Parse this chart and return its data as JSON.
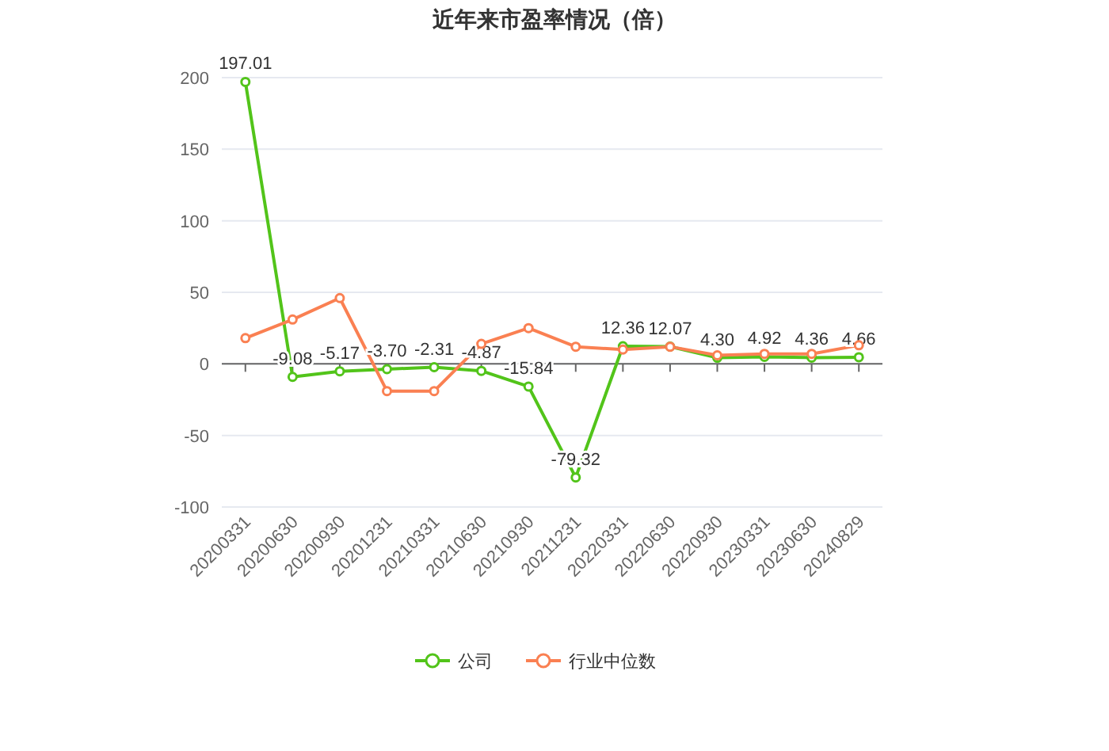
{
  "chart_data": {
    "type": "line",
    "title": "近年来市盈率情况（倍）",
    "categories": [
      "20200331",
      "20200630",
      "20200930",
      "20201231",
      "20210331",
      "20210630",
      "20210930",
      "20211231",
      "20220331",
      "20220630",
      "20220930",
      "20230331",
      "20230630",
      "20240829"
    ],
    "series": [
      {
        "name": "公司",
        "color": "#52c41a",
        "values": [
          197.01,
          -9.08,
          -5.17,
          -3.7,
          -2.31,
          -4.87,
          -15.84,
          -79.32,
          12.36,
          12.07,
          4.3,
          4.92,
          4.36,
          4.66
        ],
        "value_labels": [
          "197.01",
          "-9.08",
          "-5.17",
          "-3.70",
          "-2.31",
          "-4.87",
          "-15.84",
          "-79.32",
          "12.36",
          "12.07",
          "4.30",
          "4.92",
          "4.36",
          "4.66"
        ]
      },
      {
        "name": "行业中位数",
        "color": "#fa8052",
        "values": [
          18,
          31,
          46,
          -19,
          -19,
          14,
          25,
          12,
          10,
          12,
          6,
          7,
          7,
          13
        ]
      }
    ],
    "ylim": [
      -100,
      200
    ],
    "yticks": [
      -100,
      -50,
      0,
      50,
      100,
      150,
      200
    ],
    "grid": "y",
    "legend": "bottom",
    "marker": "circle",
    "line_style": "solid"
  }
}
